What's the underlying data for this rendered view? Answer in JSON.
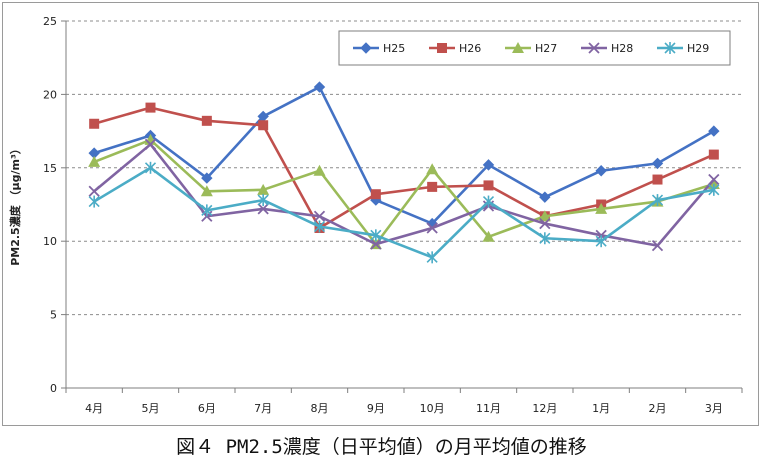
{
  "chart_data": {
    "type": "line",
    "title": "",
    "xlabel": "",
    "ylabel": "PM2.5濃度 （μg/m³）",
    "ylim": [
      0,
      25
    ],
    "yticks": [
      0,
      5,
      10,
      15,
      20,
      25
    ],
    "grid": "horizontal dashed",
    "legend_position": "top-right",
    "categories": [
      "4月",
      "5月",
      "6月",
      "7月",
      "8月",
      "9月",
      "10月",
      "11月",
      "12月",
      "1月",
      "2月",
      "3月"
    ],
    "series": [
      {
        "name": "H25",
        "color": "#4472C4",
        "marker": "diamond",
        "values": [
          16.0,
          17.2,
          14.3,
          18.5,
          20.5,
          12.8,
          11.2,
          15.2,
          13.0,
          14.8,
          15.3,
          17.5
        ]
      },
      {
        "name": "H26",
        "color": "#C0504D",
        "marker": "square",
        "values": [
          18.0,
          19.1,
          18.2,
          17.9,
          10.9,
          13.2,
          13.7,
          13.8,
          11.7,
          12.5,
          14.2,
          15.9
        ]
      },
      {
        "name": "H27",
        "color": "#9BBB59",
        "marker": "triangle",
        "values": [
          15.4,
          16.9,
          13.4,
          13.5,
          14.8,
          9.8,
          14.9,
          10.3,
          11.7,
          12.2,
          12.7,
          13.9
        ]
      },
      {
        "name": "H28",
        "color": "#8064A2",
        "marker": "x",
        "values": [
          13.4,
          16.6,
          11.7,
          12.2,
          11.7,
          9.8,
          10.9,
          12.4,
          11.2,
          10.4,
          9.7,
          14.2
        ]
      },
      {
        "name": "H29",
        "color": "#4BACC6",
        "marker": "star",
        "values": [
          12.7,
          15.0,
          12.1,
          12.8,
          11.0,
          10.4,
          8.9,
          12.7,
          10.2,
          10.0,
          12.8,
          13.5
        ]
      }
    ]
  },
  "caption": "図４ PM2.5濃度（日平均値）の月平均値の推移"
}
